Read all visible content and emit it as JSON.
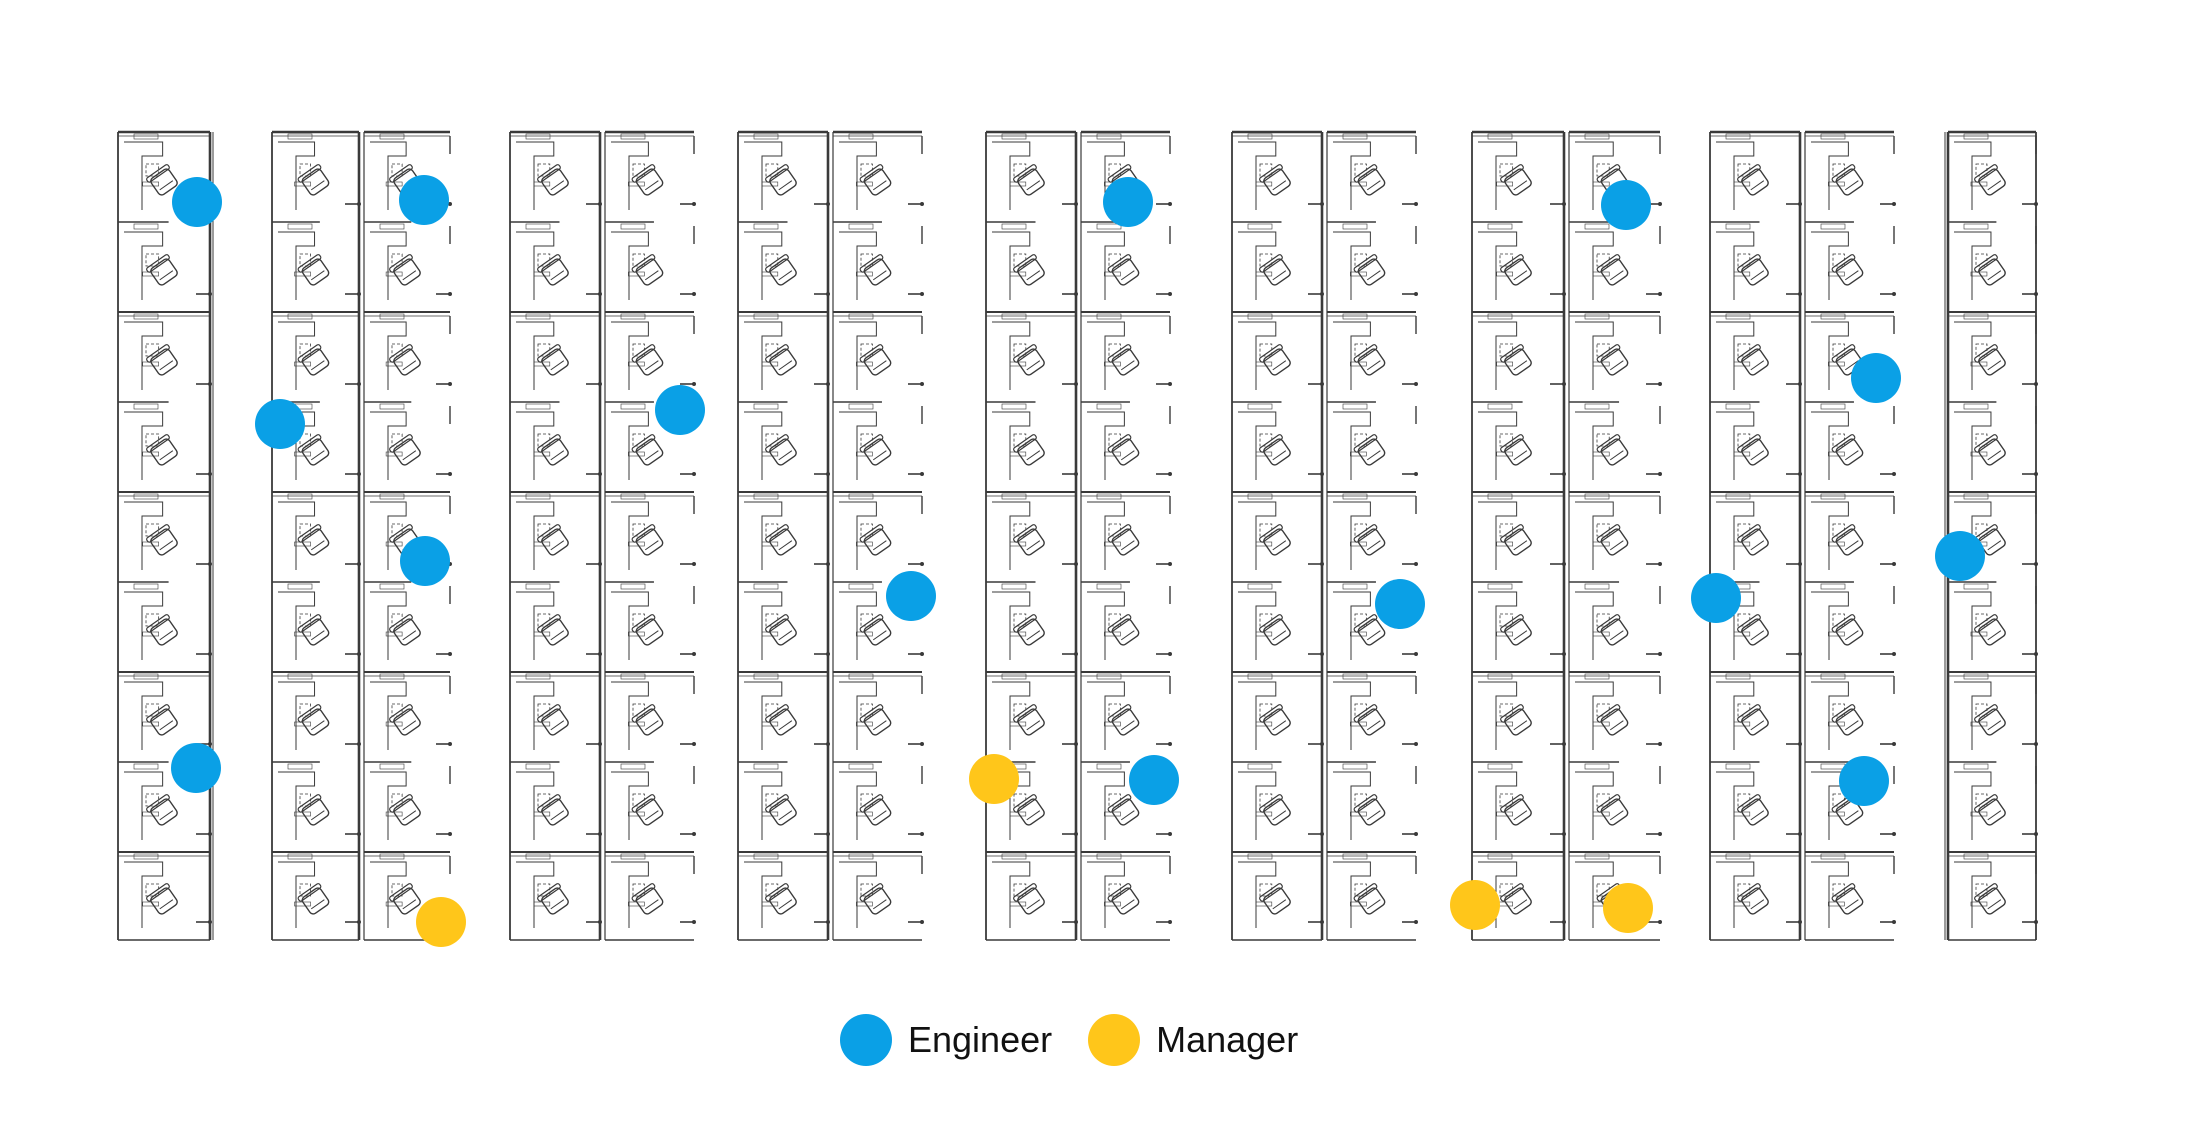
{
  "legend": {
    "engineer": {
      "label": "Engineer",
      "color": "#0AA0E6"
    },
    "manager": {
      "label": "Manager",
      "color": "#FFC61A"
    }
  },
  "floor_plan": {
    "cubicle_line_color": "#3a3a3a",
    "aisle_count": 10
  },
  "markers": [
    {
      "role": "engineer",
      "column": 1,
      "row": 1
    },
    {
      "role": "engineer",
      "column": 1,
      "row": 4
    },
    {
      "role": "engineer",
      "column": 2,
      "row": 1
    },
    {
      "role": "engineer",
      "column": 2,
      "row": 2
    },
    {
      "role": "engineer",
      "column": 2,
      "row": 3
    },
    {
      "role": "manager",
      "column": 2,
      "row": 5
    },
    {
      "role": "engineer",
      "column": 3,
      "row": 2
    },
    {
      "role": "engineer",
      "column": 4,
      "row": 3
    },
    {
      "role": "engineer",
      "column": 5,
      "row": 1
    },
    {
      "role": "manager",
      "column": 5,
      "row": 4
    },
    {
      "role": "engineer",
      "column": 5,
      "row": 4
    },
    {
      "role": "engineer",
      "column": 6,
      "row": 3
    },
    {
      "role": "engineer",
      "column": 7,
      "row": 1
    },
    {
      "role": "manager",
      "column": 7,
      "row": 5
    },
    {
      "role": "manager",
      "column": 7,
      "row": 5
    },
    {
      "role": "engineer",
      "column": 8,
      "row": 2
    },
    {
      "role": "engineer",
      "column": 8,
      "row": 3
    },
    {
      "role": "engineer",
      "column": 8,
      "row": 4
    },
    {
      "role": "engineer",
      "column": 9,
      "row": 3
    }
  ]
}
